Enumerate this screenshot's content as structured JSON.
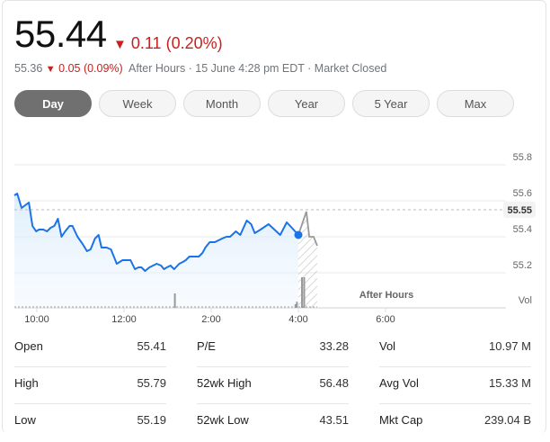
{
  "quote": {
    "price": "55.44",
    "change_arrow": "▼",
    "change": "0.11 (0.20%)",
    "after_hours_price": "55.36",
    "after_hours_arrow": "▼",
    "after_hours_change": "0.05 (0.09%)",
    "status": "After Hours · 15 June 4:28 pm EDT · Market Closed"
  },
  "tabs": [
    {
      "label": "Day",
      "active": true
    },
    {
      "label": "Week"
    },
    {
      "label": "Month"
    },
    {
      "label": "Year"
    },
    {
      "label": "5 Year"
    },
    {
      "label": "Max"
    }
  ],
  "colors": {
    "line": "#1a73e8",
    "down": "#c5221f",
    "after_hours": "#999999"
  },
  "chart_data": {
    "type": "line",
    "ylim": [
      55.1,
      55.8
    ],
    "yticks": [
      "55.8",
      "55.6",
      "55.4",
      "55.2"
    ],
    "xticks": [
      "10:00",
      "12:00",
      "2:00",
      "4:00",
      "6:00"
    ],
    "previous_close": "55.55",
    "after_hours_label": "After Hours",
    "volume_label": "Vol",
    "regular": [
      [
        "9:29",
        55.63
      ],
      [
        "9:33",
        55.64
      ],
      [
        "9:39",
        55.56
      ],
      [
        "9:49",
        55.59
      ],
      [
        "9:54",
        55.46
      ],
      [
        "9:59",
        55.43
      ],
      [
        "10:03",
        55.44
      ],
      [
        "10:09",
        55.44
      ],
      [
        "10:14",
        55.43
      ],
      [
        "10:19",
        55.45
      ],
      [
        "10:24",
        55.46
      ],
      [
        "10:29",
        55.5
      ],
      [
        "10:34",
        55.4
      ],
      [
        "10:39",
        55.43
      ],
      [
        "10:45",
        55.46
      ],
      [
        "10:49",
        55.46
      ],
      [
        "10:56",
        55.4
      ],
      [
        "11:03",
        55.36
      ],
      [
        "11:09",
        55.32
      ],
      [
        "11:14",
        55.33
      ],
      [
        "11:20",
        55.39
      ],
      [
        "11:25",
        55.41
      ],
      [
        "11:29",
        55.34
      ],
      [
        "11:36",
        55.34
      ],
      [
        "11:42",
        55.33
      ],
      [
        "11:50",
        55.25
      ],
      [
        "11:58",
        55.27
      ],
      [
        "12:05",
        55.27
      ],
      [
        "12:09",
        55.27
      ],
      [
        "12:15",
        55.22
      ],
      [
        "12:20",
        55.23
      ],
      [
        "12:24",
        55.23
      ],
      [
        "12:29",
        55.21
      ],
      [
        "12:35",
        55.23
      ],
      [
        "12:40",
        55.24
      ],
      [
        "12:45",
        55.25
      ],
      [
        "12:51",
        55.24
      ],
      [
        "12:55",
        55.22
      ],
      [
        "12:59",
        55.23
      ],
      [
        "13:04",
        55.24
      ],
      [
        "13:09",
        55.22
      ],
      [
        "13:16",
        55.25
      ],
      [
        "13:21",
        55.26
      ],
      [
        "13:25",
        55.27
      ],
      [
        "13:30",
        55.29
      ],
      [
        "13:35",
        55.29
      ],
      [
        "13:43",
        55.29
      ],
      [
        "13:48",
        55.31
      ],
      [
        "13:52",
        55.34
      ],
      [
        "13:58",
        55.37
      ],
      [
        "14:05",
        55.37
      ],
      [
        "14:10",
        55.38
      ],
      [
        "14:15",
        55.39
      ],
      [
        "14:21",
        55.4
      ],
      [
        "14:26",
        55.4
      ],
      [
        "14:34",
        55.43
      ],
      [
        "14:40",
        55.41
      ],
      [
        "14:49",
        55.49
      ],
      [
        "14:55",
        55.47
      ],
      [
        "15:00",
        55.42
      ],
      [
        "15:08",
        55.44
      ],
      [
        "15:19",
        55.47
      ],
      [
        "15:27",
        55.44
      ],
      [
        "15:35",
        55.41
      ],
      [
        "15:44",
        55.48
      ],
      [
        "15:51",
        55.45
      ],
      [
        "16:00",
        55.41
      ]
    ],
    "after_hours": [
      [
        "16:00",
        55.41
      ],
      [
        "16:11",
        55.54
      ],
      [
        "16:15",
        55.4
      ],
      [
        "16:21",
        55.4
      ],
      [
        "16:26",
        55.35
      ]
    ],
    "volume_relative": [
      [
        "13:10",
        0.47
      ],
      [
        "15:56",
        0.12
      ],
      [
        "15:58",
        0.2
      ],
      [
        "16:05",
        1.0
      ],
      [
        "16:08",
        1.0
      ]
    ]
  },
  "stats": [
    [
      {
        "label": "Open",
        "value": "55.41"
      },
      {
        "label": "High",
        "value": "55.79"
      },
      {
        "label": "Low",
        "value": "55.19"
      }
    ],
    [
      {
        "label": "P/E",
        "value": "33.28"
      },
      {
        "label": "52wk High",
        "value": "56.48"
      },
      {
        "label": "52wk Low",
        "value": "43.51"
      }
    ],
    [
      {
        "label": "Vol",
        "value": "10.97 M"
      },
      {
        "label": "Avg Vol",
        "value": "15.33 M"
      },
      {
        "label": "Mkt Cap",
        "value": "239.04 B"
      }
    ]
  ]
}
